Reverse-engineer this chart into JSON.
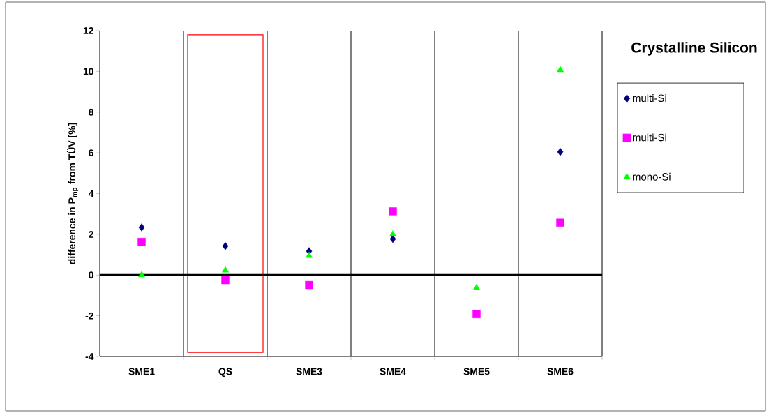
{
  "chart_data": {
    "type": "scatter",
    "title": "Crystalline Silicon",
    "ylabel": "difference in P$_{mp}$ from TÜV [%]",
    "categories": [
      "SME1",
      "QS",
      "SME3",
      "SME4",
      "SME5",
      "SME6"
    ],
    "series": [
      {
        "name": "multi-Si",
        "color": "#000080",
        "marker": "diamond",
        "values": [
          2.34,
          1.42,
          1.17,
          1.77,
          null,
          6.05
        ]
      },
      {
        "name": "multi-Si",
        "color": "#ff00ff",
        "marker": "square",
        "values": [
          1.63,
          -0.25,
          -0.49,
          3.13,
          -1.92,
          2.57
        ]
      },
      {
        "name": "mono-Si",
        "color": "#00ff00",
        "marker": "triangle",
        "values": [
          0,
          0.23,
          0.95,
          2.0,
          -0.63,
          10.07
        ]
      }
    ],
    "ylim": [
      -4,
      12
    ],
    "yticks": [
      -4,
      -2,
      0,
      2,
      4,
      6,
      8,
      10,
      12
    ],
    "grid": "x",
    "legend": "right",
    "ref_lines": [
      {
        "axis": "y",
        "value": 0,
        "color": "#000000"
      }
    ]
  }
}
